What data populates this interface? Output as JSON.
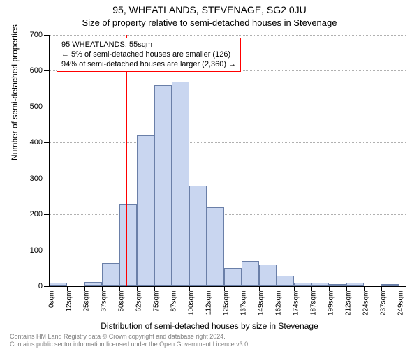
{
  "title_main": "95, WHEATLANDS, STEVENAGE, SG2 0JU",
  "title_sub": "Size of property relative to semi-detached houses in Stevenage",
  "y_axis_title": "Number of semi-detached properties",
  "x_axis_title": "Distribution of semi-detached houses by size in Stevenage",
  "chart": {
    "type": "histogram",
    "bar_fill": "#c9d6f0",
    "bar_border": "#6a7fa8",
    "grid_color": "#b0b0b0",
    "background": "#ffffff",
    "axis_color": "#000000",
    "ref_line_color": "#ff0000",
    "ref_line_x": 55,
    "xlim": [
      0,
      255
    ],
    "ylim": [
      0,
      700
    ],
    "ytick_step": 100,
    "x_tick_step": 12.5,
    "x_label_suffix": "sqm",
    "x_label_values": [
      0,
      12,
      25,
      37,
      50,
      62,
      75,
      87,
      100,
      112,
      125,
      137,
      149,
      162,
      174,
      187,
      199,
      212,
      224,
      237,
      249
    ],
    "bin_width": 12.5,
    "bins": [
      {
        "x": 0,
        "count": 10
      },
      {
        "x": 12.5,
        "count": 0
      },
      {
        "x": 25,
        "count": 12
      },
      {
        "x": 37.5,
        "count": 65
      },
      {
        "x": 50,
        "count": 230
      },
      {
        "x": 62.5,
        "count": 420
      },
      {
        "x": 75,
        "count": 560
      },
      {
        "x": 87.5,
        "count": 570
      },
      {
        "x": 100,
        "count": 280
      },
      {
        "x": 112.5,
        "count": 220
      },
      {
        "x": 125,
        "count": 50
      },
      {
        "x": 137.5,
        "count": 70
      },
      {
        "x": 150,
        "count": 60
      },
      {
        "x": 162.5,
        "count": 30
      },
      {
        "x": 175,
        "count": 10
      },
      {
        "x": 187.5,
        "count": 10
      },
      {
        "x": 200,
        "count": 5
      },
      {
        "x": 212.5,
        "count": 10
      },
      {
        "x": 225,
        "count": 0
      },
      {
        "x": 237.5,
        "count": 5
      }
    ]
  },
  "annotation": {
    "line1": "95 WHEATLANDS: 55sqm",
    "line2": "← 5% of semi-detached houses are smaller (126)",
    "line3": "94% of semi-detached houses are larger (2,360) →"
  },
  "footer": {
    "line1": "Contains HM Land Registry data © Crown copyright and database right 2024.",
    "line2": "Contains public sector information licensed under the Open Government Licence v3.0."
  }
}
